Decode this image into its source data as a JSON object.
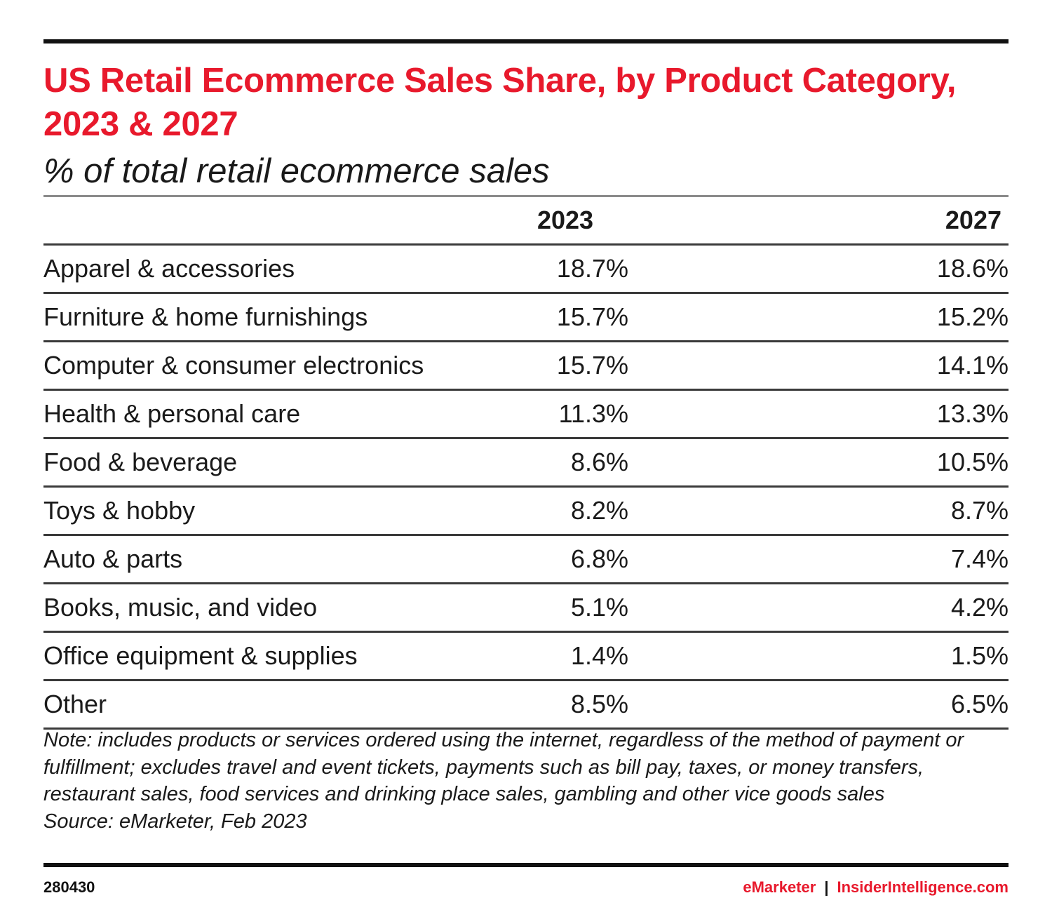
{
  "chart_data": {
    "type": "table",
    "title": "US Retail Ecommerce Sales Share, by Product Category, 2023 & 2027",
    "subtitle": "% of total retail ecommerce sales",
    "columns": [
      "",
      "2023",
      "2027"
    ],
    "rows": [
      {
        "label": "Apparel & accessories",
        "v2023": "18.7%",
        "v2027": "18.6%"
      },
      {
        "label": "Furniture & home furnishings",
        "v2023": "15.7%",
        "v2027": "15.2%"
      },
      {
        "label": "Computer & consumer electronics",
        "v2023": "15.7%",
        "v2027": "14.1%"
      },
      {
        "label": "Health & personal care",
        "v2023": "11.3%",
        "v2027": "13.3%"
      },
      {
        "label": "Food & beverage",
        "v2023": "8.6%",
        "v2027": "10.5%"
      },
      {
        "label": "Toys & hobby",
        "v2023": "8.2%",
        "v2027": "8.7%"
      },
      {
        "label": "Auto & parts",
        "v2023": "6.8%",
        "v2027": "7.4%"
      },
      {
        "label": "Books, music, and video",
        "v2023": "5.1%",
        "v2027": "4.2%"
      },
      {
        "label": "Office equipment & supplies",
        "v2023": "1.4%",
        "v2027": "1.5%"
      },
      {
        "label": "Other",
        "v2023": "8.5%",
        "v2027": "6.5%"
      }
    ],
    "note": "Note: includes products or services ordered using the internet, regardless of the method of payment or fulfillment; excludes travel and event tickets, payments such as bill pay, taxes, or money transfers, restaurant sales, food services and drinking place sales, gambling and other vice goods sales",
    "source": "Source: eMarketer, Feb 2023"
  },
  "footer": {
    "chart_id": "280430",
    "brand": "eMarketer",
    "separator": "|",
    "site": "InsiderIntelligence.com"
  },
  "colors": {
    "accent": "#e8192c",
    "text": "#1a1a1a",
    "rule": "#3a3a3a"
  }
}
